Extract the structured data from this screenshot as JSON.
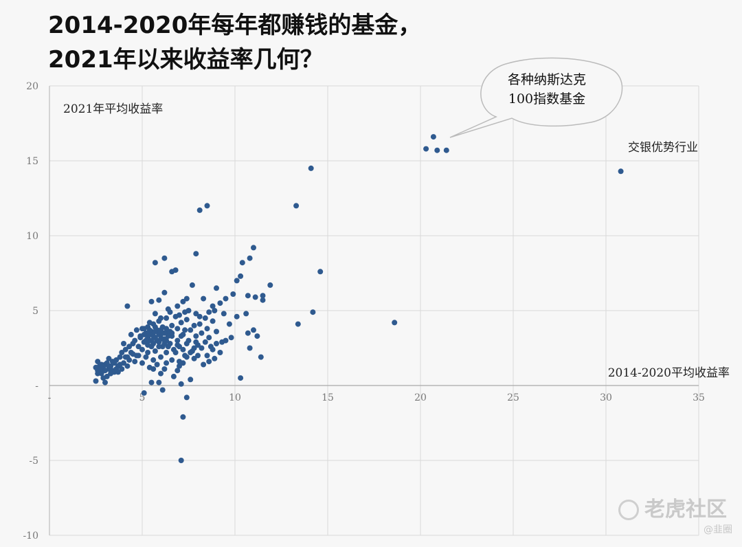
{
  "title_line1": "2014-2020年每年都赚钱的基金，",
  "title_line2": "2021年以来收益率几何？",
  "watermark": "老虎社区",
  "watermark_sub": "@韭圈",
  "chart_data": {
    "type": "scatter",
    "title": "2014-2020年每年都赚钱的基金，2021年以来收益率几何？",
    "xlabel": "2014-2020平均收益率",
    "ylabel": "2021年平均收益率",
    "xlim": [
      0,
      35
    ],
    "ylim": [
      -10,
      20
    ],
    "x_ticks": [
      "-",
      "5",
      "10",
      "15",
      "20",
      "25",
      "30",
      "35"
    ],
    "y_ticks": [
      "-10",
      "-5",
      "-",
      "5",
      "10",
      "15",
      "20"
    ],
    "grid": true,
    "color": "#2f5a8f",
    "annotations": [
      {
        "text": "各种纳斯达克\n100指数基金",
        "x": 21,
        "y": 16.5
      },
      {
        "text": "交银优势行业",
        "x": 30.8,
        "y": 14.3
      }
    ],
    "points": [
      [
        20.3,
        15.8
      ],
      [
        20.7,
        16.6
      ],
      [
        20.9,
        15.7
      ],
      [
        21.4,
        15.7
      ],
      [
        30.8,
        14.3
      ],
      [
        14.1,
        14.5
      ],
      [
        13.3,
        12.0
      ],
      [
        14.6,
        7.6
      ],
      [
        14.2,
        4.9
      ],
      [
        13.4,
        4.1
      ],
      [
        18.6,
        4.2
      ],
      [
        8.5,
        12.0
      ],
      [
        8.1,
        11.7
      ],
      [
        7.9,
        8.8
      ],
      [
        11.0,
        9.2
      ],
      [
        10.8,
        8.5
      ],
      [
        10.4,
        8.2
      ],
      [
        10.3,
        7.3
      ],
      [
        10.1,
        7.0
      ],
      [
        11.9,
        6.7
      ],
      [
        11.5,
        6.0
      ],
      [
        11.5,
        5.7
      ],
      [
        11.1,
        5.9
      ],
      [
        10.7,
        6.0
      ],
      [
        10.6,
        4.8
      ],
      [
        10.1,
        4.6
      ],
      [
        9.9,
        6.1
      ],
      [
        9.5,
        5.8
      ],
      [
        9.2,
        5.5
      ],
      [
        9.0,
        6.5
      ],
      [
        8.8,
        5.3
      ],
      [
        8.6,
        4.9
      ],
      [
        8.3,
        5.8
      ],
      [
        8.1,
        4.6
      ],
      [
        7.7,
        6.7
      ],
      [
        7.4,
        5.8
      ],
      [
        7.5,
        5.0
      ],
      [
        7.2,
        5.6
      ],
      [
        6.9,
        5.3
      ],
      [
        6.8,
        7.7
      ],
      [
        6.6,
        7.6
      ],
      [
        6.2,
        8.5
      ],
      [
        5.7,
        8.2
      ],
      [
        6.2,
        6.2
      ],
      [
        5.9,
        5.7
      ],
      [
        5.5,
        5.6
      ],
      [
        4.2,
        5.3
      ],
      [
        11.0,
        3.7
      ],
      [
        11.2,
        3.3
      ],
      [
        10.8,
        2.5
      ],
      [
        10.7,
        3.5
      ],
      [
        9.8,
        3.2
      ],
      [
        9.3,
        2.9
      ],
      [
        9.0,
        2.8
      ],
      [
        8.7,
        2.6
      ],
      [
        8.9,
        1.8
      ],
      [
        8.5,
        2.0
      ],
      [
        8.2,
        2.5
      ],
      [
        7.9,
        2.9
      ],
      [
        7.8,
        1.8
      ],
      [
        7.4,
        1.9
      ],
      [
        7.2,
        1.5
      ],
      [
        7.0,
        1.3
      ],
      [
        6.9,
        1.0
      ],
      [
        6.7,
        0.6
      ],
      [
        10.3,
        0.5
      ],
      [
        11.4,
        1.9
      ],
      [
        6.1,
        -0.3
      ],
      [
        5.1,
        -0.5
      ],
      [
        7.2,
        -2.1
      ],
      [
        7.4,
        -0.8
      ],
      [
        7.1,
        -5.0
      ],
      [
        5.5,
        0.2
      ],
      [
        5.9,
        0.2
      ],
      [
        7.1,
        0.1
      ],
      [
        7.6,
        0.4
      ],
      [
        6.3,
        1.5
      ],
      [
        6.0,
        0.8
      ],
      [
        5.6,
        1.1
      ],
      [
        2.5,
        0.3
      ],
      [
        2.6,
        0.8
      ],
      [
        2.7,
        1.3
      ],
      [
        2.8,
        1.0
      ],
      [
        2.9,
        1.2
      ],
      [
        3.0,
        1.4
      ],
      [
        3.1,
        0.6
      ],
      [
        3.2,
        1.1
      ],
      [
        3.3,
        1.3
      ],
      [
        3.4,
        1.0
      ],
      [
        3.5,
        1.5
      ],
      [
        3.6,
        1.7
      ],
      [
        3.7,
        1.3
      ],
      [
        3.8,
        1.9
      ],
      [
        3.9,
        2.2
      ],
      [
        4.0,
        1.5
      ],
      [
        4.1,
        2.4
      ],
      [
        4.2,
        1.9
      ],
      [
        4.3,
        2.6
      ],
      [
        4.4,
        2.2
      ],
      [
        4.5,
        2.8
      ],
      [
        4.6,
        3.0
      ],
      [
        4.7,
        2.0
      ],
      [
        4.8,
        2.6
      ],
      [
        4.9,
        3.3
      ],
      [
        5.0,
        2.4
      ],
      [
        5.0,
        3.8
      ],
      [
        5.1,
        2.9
      ],
      [
        5.2,
        3.5
      ],
      [
        5.3,
        2.2
      ],
      [
        5.3,
        3.9
      ],
      [
        5.4,
        3.0
      ],
      [
        5.5,
        3.6
      ],
      [
        5.5,
        2.6
      ],
      [
        5.6,
        4.1
      ],
      [
        5.7,
        3.2
      ],
      [
        5.7,
        2.3
      ],
      [
        5.8,
        3.7
      ],
      [
        5.9,
        2.9
      ],
      [
        5.9,
        4.3
      ],
      [
        6.0,
        3.4
      ],
      [
        6.1,
        2.6
      ],
      [
        6.1,
        3.9
      ],
      [
        6.2,
        3.1
      ],
      [
        6.3,
        4.5
      ],
      [
        6.3,
        2.2
      ],
      [
        6.4,
        3.6
      ],
      [
        6.5,
        2.8
      ],
      [
        6.6,
        4.0
      ],
      [
        6.6,
        3.3
      ],
      [
        6.7,
        2.4
      ],
      [
        6.8,
        4.6
      ],
      [
        6.9,
        3.0
      ],
      [
        6.9,
        3.8
      ],
      [
        7.0,
        2.6
      ],
      [
        7.1,
        4.2
      ],
      [
        7.2,
        3.4
      ],
      [
        7.3,
        2.0
      ],
      [
        7.4,
        4.4
      ],
      [
        7.5,
        3.0
      ],
      [
        7.6,
        3.7
      ],
      [
        7.7,
        2.3
      ],
      [
        7.8,
        4.0
      ],
      [
        7.9,
        3.3
      ],
      [
        8.0,
        2.7
      ],
      [
        8.1,
        4.1
      ],
      [
        8.2,
        3.5
      ],
      [
        8.4,
        2.9
      ],
      [
        8.5,
        3.8
      ],
      [
        8.6,
        3.2
      ],
      [
        8.8,
        4.3
      ],
      [
        9.0,
        3.6
      ],
      [
        2.6,
        1.6
      ],
      [
        2.8,
        0.8
      ],
      [
        3.0,
        0.2
      ],
      [
        3.2,
        1.8
      ],
      [
        3.5,
        0.9
      ],
      [
        3.8,
        1.4
      ],
      [
        4.0,
        2.8
      ],
      [
        4.4,
        3.4
      ],
      [
        4.6,
        1.6
      ],
      [
        4.8,
        2.0
      ],
      [
        5.0,
        1.5
      ],
      [
        5.2,
        1.9
      ],
      [
        5.4,
        1.2
      ],
      [
        5.6,
        1.7
      ],
      [
        5.8,
        1.4
      ],
      [
        6.0,
        1.9
      ],
      [
        6.2,
        1.1
      ],
      [
        6.4,
        2.6
      ],
      [
        6.6,
        1.7
      ],
      [
        6.8,
        2.2
      ],
      [
        7.0,
        1.6
      ],
      [
        7.2,
        2.4
      ],
      [
        7.4,
        2.8
      ],
      [
        7.6,
        2.2
      ],
      [
        7.8,
        2.5
      ],
      [
        8.0,
        2.0
      ],
      [
        8.3,
        1.4
      ],
      [
        8.6,
        1.6
      ],
      [
        8.8,
        2.4
      ],
      [
        9.2,
        2.2
      ],
      [
        9.5,
        3.0
      ],
      [
        9.7,
        4.1
      ],
      [
        9.4,
        4.8
      ],
      [
        8.9,
        5.0
      ],
      [
        8.4,
        4.5
      ],
      [
        7.9,
        4.8
      ],
      [
        7.3,
        4.9
      ],
      [
        7.0,
        4.7
      ],
      [
        6.5,
        4.9
      ],
      [
        6.4,
        5.1
      ],
      [
        6.0,
        4.5
      ],
      [
        5.7,
        4.8
      ],
      [
        5.4,
        4.2
      ],
      [
        5.1,
        3.8
      ],
      [
        4.9,
        3.2
      ],
      [
        4.7,
        3.7
      ],
      [
        4.5,
        2.1
      ],
      [
        4.3,
        1.7
      ],
      [
        4.1,
        1.9
      ],
      [
        3.9,
        1.1
      ],
      [
        3.7,
        0.9
      ],
      [
        3.4,
        1.6
      ],
      [
        3.3,
        0.8
      ],
      [
        3.1,
        1.5
      ],
      [
        2.9,
        0.5
      ],
      [
        2.7,
        1.1
      ],
      [
        2.5,
        1.2
      ],
      [
        2.6,
        1.0
      ],
      [
        2.8,
        1.4
      ],
      [
        3.0,
        1.0
      ],
      [
        3.2,
        1.3
      ],
      [
        3.6,
        1.1
      ],
      [
        4.2,
        1.3
      ],
      [
        5.2,
        3.0
      ],
      [
        5.3,
        3.2
      ],
      [
        5.4,
        3.4
      ],
      [
        5.5,
        3.0
      ],
      [
        5.6,
        3.3
      ],
      [
        5.7,
        3.6
      ],
      [
        5.8,
        3.0
      ],
      [
        5.9,
        3.4
      ],
      [
        6.0,
        3.7
      ],
      [
        6.1,
        3.1
      ],
      [
        6.2,
        3.5
      ],
      [
        6.3,
        3.0
      ],
      [
        6.4,
        3.3
      ],
      [
        6.5,
        3.6
      ],
      [
        5.3,
        2.7
      ],
      [
        5.6,
        2.8
      ],
      [
        5.9,
        2.6
      ],
      [
        6.2,
        2.8
      ],
      [
        5.1,
        3.4
      ],
      [
        5.4,
        3.7
      ],
      [
        5.7,
        3.9
      ],
      [
        6.0,
        3.1
      ],
      [
        6.3,
        3.8
      ],
      [
        6.6,
        3.5
      ],
      [
        6.9,
        2.7
      ],
      [
        7.1,
        3.3
      ],
      [
        7.3,
        3.7
      ]
    ]
  }
}
